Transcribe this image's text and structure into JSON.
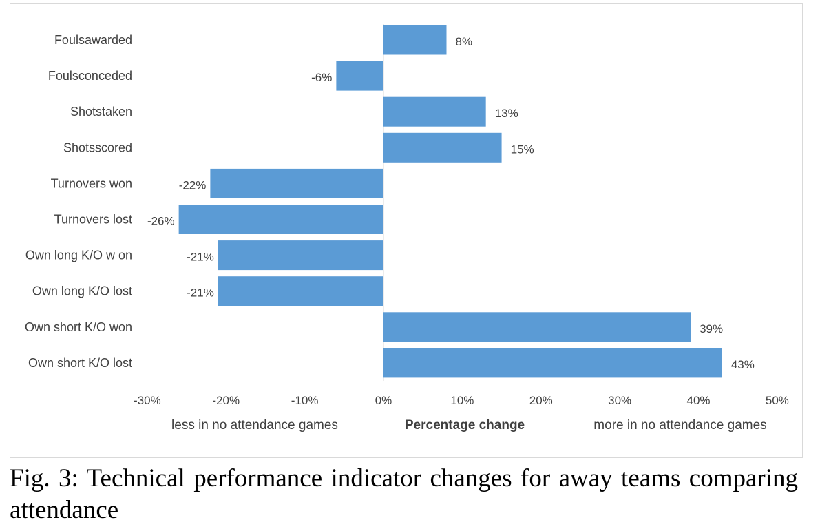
{
  "chart_data": {
    "type": "bar",
    "orientation": "horizontal",
    "categories": [
      "Foulsawarded",
      "Foulsconceded",
      "Shotstaken",
      "Shotsscored",
      "Turnovers won",
      "Turnovers lost",
      "Own long K/O w on",
      "Own long K/O lost",
      "Own short K/O won",
      "Own short K/O lost"
    ],
    "values": [
      8,
      -6,
      13,
      15,
      -22,
      -26,
      -21,
      -21,
      39,
      43
    ],
    "value_labels": [
      "8%",
      "-6%",
      "13%",
      "15%",
      "-22%",
      "-26%",
      "-21%",
      "-21%",
      "39%",
      "43%"
    ],
    "xlim": [
      -30,
      50
    ],
    "xticks": [
      -30,
      -20,
      -10,
      0,
      10,
      20,
      30,
      40,
      50
    ],
    "xtick_labels": [
      "-30%",
      "-20%",
      "-10%",
      "0%",
      "10%",
      "20%",
      "30%",
      "40%",
      "50%"
    ],
    "xlabel": "Percentage change",
    "xlabel_left": "less in no attendance games",
    "xlabel_right": "more in no attendance games",
    "grid": false,
    "legend": "none",
    "bar_color": "#5b9bd5"
  },
  "caption": "Fig. 3:  Technical performance indicator changes for away teams comparing attendance"
}
